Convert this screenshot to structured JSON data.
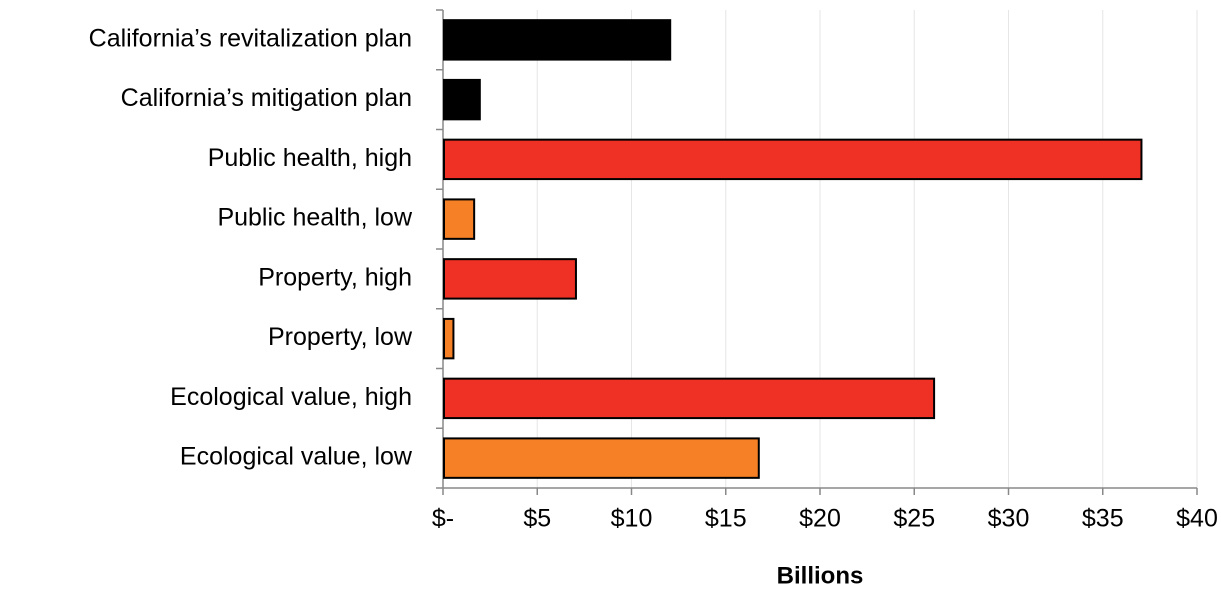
{
  "chart_data": {
    "type": "bar",
    "orientation": "horizontal",
    "categories": [
      "California’s revitalization plan",
      "California’s mitigation plan",
      "Public health, high",
      "Public health, low",
      "Property, high",
      "Property, low",
      "Ecological value, high",
      "Ecological value, low"
    ],
    "values": [
      12,
      1.9,
      37,
      1.6,
      7,
      0.5,
      26,
      16.7
    ],
    "colors": [
      "#000000",
      "#000000",
      "#ee3124",
      "#f58025",
      "#ee3124",
      "#f58025",
      "#ee3124",
      "#f58025"
    ],
    "x_label": "Billions",
    "xlim": [
      0,
      40
    ],
    "xticks": [
      {
        "value": 0,
        "label": "$-"
      },
      {
        "value": 5,
        "label": "$5"
      },
      {
        "value": 10,
        "label": "$10"
      },
      {
        "value": 15,
        "label": "$15"
      },
      {
        "value": 20,
        "label": "$20"
      },
      {
        "value": 25,
        "label": "$25"
      },
      {
        "value": 30,
        "label": "$30"
      },
      {
        "value": 35,
        "label": "$35"
      },
      {
        "value": 40,
        "label": "$40"
      }
    ],
    "grid": true
  }
}
